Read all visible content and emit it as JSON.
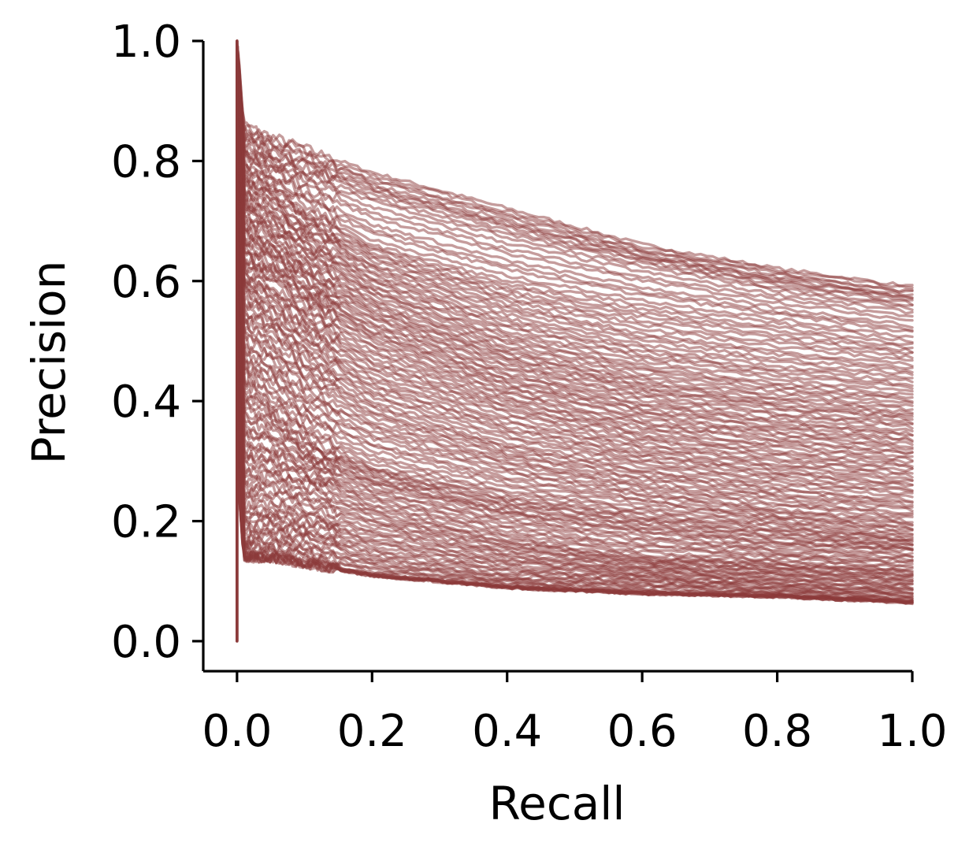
{
  "chart_data": {
    "type": "line",
    "xlabel": "Recall",
    "ylabel": "Precision",
    "xlim": [
      -0.05,
      1.0
    ],
    "ylim": [
      -0.05,
      1.0
    ],
    "xticks": [
      "0.0",
      "0.2",
      "0.4",
      "0.6",
      "0.8",
      "1.0"
    ],
    "yticks": [
      "0.0",
      "0.2",
      "0.4",
      "0.6",
      "0.8",
      "1.0"
    ],
    "grid": false,
    "legend": "none",
    "line_color": "#8b3a3a",
    "line_alpha": 0.55,
    "series_note_count": 150,
    "series": [
      {
        "x": [
          0,
          0.01,
          0.05,
          0.1,
          0.2,
          0.4,
          0.6,
          0.8,
          1.0
        ],
        "y": [
          1.0,
          0.86,
          0.84,
          0.82,
          0.78,
          0.72,
          0.66,
          0.62,
          0.59
        ]
      },
      {
        "x": [
          0,
          0.01,
          0.05,
          0.1,
          0.2,
          0.4,
          0.6,
          0.8,
          1.0
        ],
        "y": [
          1.0,
          0.82,
          0.8,
          0.78,
          0.74,
          0.68,
          0.63,
          0.59,
          0.56
        ]
      },
      {
        "x": [
          0,
          0.01,
          0.05,
          0.1,
          0.2,
          0.4,
          0.6,
          0.8,
          1.0
        ],
        "y": [
          1.0,
          0.78,
          0.76,
          0.72,
          0.66,
          0.6,
          0.56,
          0.53,
          0.5
        ]
      },
      {
        "x": [
          0,
          0.01,
          0.05,
          0.1,
          0.2,
          0.4,
          0.6,
          0.8,
          1.0
        ],
        "y": [
          1.0,
          0.74,
          0.72,
          0.68,
          0.62,
          0.55,
          0.5,
          0.47,
          0.45
        ]
      },
      {
        "x": [
          0,
          0.01,
          0.05,
          0.1,
          0.2,
          0.4,
          0.6,
          0.8,
          1.0
        ],
        "y": [
          0.9,
          0.7,
          0.68,
          0.64,
          0.58,
          0.5,
          0.45,
          0.42,
          0.4
        ]
      },
      {
        "x": [
          0,
          0.01,
          0.05,
          0.1,
          0.2,
          0.4,
          0.6,
          0.8,
          1.0
        ],
        "y": [
          0.9,
          0.66,
          0.64,
          0.6,
          0.54,
          0.46,
          0.41,
          0.38,
          0.36
        ]
      },
      {
        "x": [
          0,
          0.01,
          0.05,
          0.1,
          0.2,
          0.4,
          0.6,
          0.8,
          1.0
        ],
        "y": [
          0.8,
          0.62,
          0.6,
          0.56,
          0.5,
          0.42,
          0.37,
          0.34,
          0.32
        ]
      },
      {
        "x": [
          0,
          0.01,
          0.05,
          0.1,
          0.2,
          0.4,
          0.6,
          0.8,
          1.0
        ],
        "y": [
          0.8,
          0.58,
          0.55,
          0.51,
          0.45,
          0.38,
          0.33,
          0.3,
          0.28
        ]
      },
      {
        "x": [
          0,
          0.01,
          0.05,
          0.1,
          0.2,
          0.4,
          0.6,
          0.8,
          1.0
        ],
        "y": [
          0.7,
          0.52,
          0.5,
          0.46,
          0.4,
          0.33,
          0.29,
          0.26,
          0.24
        ]
      },
      {
        "x": [
          0,
          0.01,
          0.05,
          0.1,
          0.2,
          0.4,
          0.6,
          0.8,
          1.0
        ],
        "y": [
          0.7,
          0.46,
          0.44,
          0.4,
          0.35,
          0.29,
          0.25,
          0.22,
          0.2
        ]
      },
      {
        "x": [
          0,
          0.01,
          0.05,
          0.1,
          0.2,
          0.4,
          0.6,
          0.8,
          1.0
        ],
        "y": [
          0.6,
          0.4,
          0.38,
          0.34,
          0.29,
          0.24,
          0.21,
          0.19,
          0.17
        ]
      },
      {
        "x": [
          0,
          0.01,
          0.05,
          0.1,
          0.2,
          0.4,
          0.6,
          0.8,
          1.0
        ],
        "y": [
          0.6,
          0.34,
          0.33,
          0.3,
          0.26,
          0.21,
          0.18,
          0.16,
          0.15
        ]
      },
      {
        "x": [
          0,
          0.01,
          0.05,
          0.1,
          0.2,
          0.4,
          0.6,
          0.8,
          1.0
        ],
        "y": [
          0.5,
          0.28,
          0.28,
          0.26,
          0.22,
          0.17,
          0.14,
          0.13,
          0.12
        ]
      },
      {
        "x": [
          0,
          0.01,
          0.05,
          0.1,
          0.2,
          0.4,
          0.6,
          0.8,
          1.0
        ],
        "y": [
          0.5,
          0.22,
          0.22,
          0.21,
          0.18,
          0.14,
          0.12,
          0.11,
          0.1
        ]
      },
      {
        "x": [
          0,
          0.01,
          0.05,
          0.1,
          0.2,
          0.4,
          0.6,
          0.8,
          1.0
        ],
        "y": [
          0.4,
          0.17,
          0.18,
          0.17,
          0.14,
          0.11,
          0.1,
          0.09,
          0.08
        ]
      },
      {
        "x": [
          0,
          0.01,
          0.05,
          0.1,
          0.2,
          0.4,
          0.6,
          0.8,
          1.0
        ],
        "y": [
          0.3,
          0.14,
          0.14,
          0.13,
          0.11,
          0.09,
          0.08,
          0.075,
          0.065
        ]
      }
    ]
  }
}
